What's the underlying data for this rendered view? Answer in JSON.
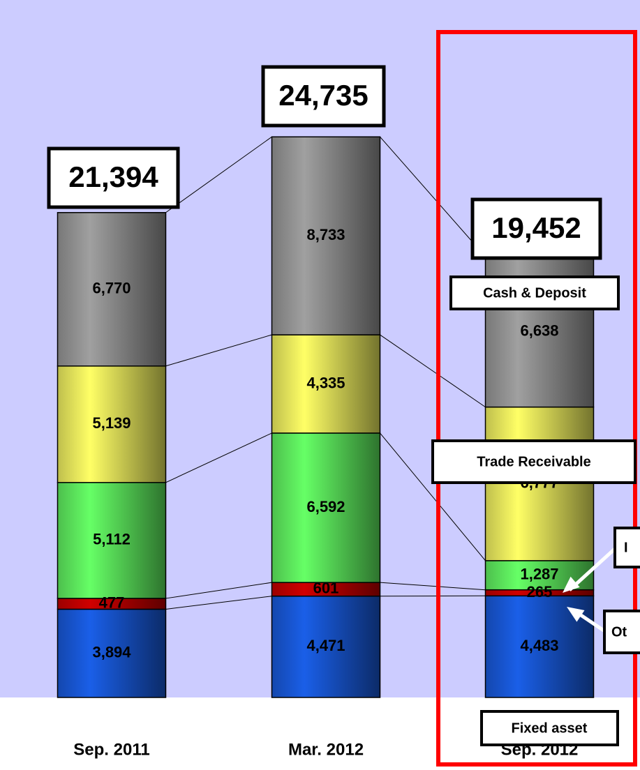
{
  "chart_data": {
    "type": "stacked_bar",
    "categories": [
      "Sep. 2011",
      "Mar. 2012",
      "Sep. 2012"
    ],
    "series": [
      {
        "name": "Fixed asset",
        "color": "#1a5fe8",
        "values": [
          3894,
          4471,
          4483
        ],
        "value_labels": [
          "3,894",
          "4,471",
          "4,483"
        ]
      },
      {
        "name": "Ot",
        "color": "#d00000",
        "values": [
          477,
          601,
          265
        ],
        "value_labels": [
          "477",
          "601",
          "265"
        ]
      },
      {
        "name": "I",
        "color": "#66ff66",
        "values": [
          5112,
          6592,
          1287
        ],
        "value_labels": [
          "5,112",
          "6,592",
          "1,287"
        ]
      },
      {
        "name": "Trade Receivable",
        "color": "#ffff66",
        "values": [
          5139,
          4335,
          6777
        ],
        "value_labels": [
          "5,139",
          "4,335",
          "6,777"
        ]
      },
      {
        "name": "Cash & Deposit",
        "color": "#a0a0a0",
        "values": [
          6770,
          8733,
          6638
        ],
        "value_labels": [
          "6,770",
          "8,733",
          "6,638"
        ]
      }
    ],
    "totals": [
      21394,
      24735,
      19452
    ],
    "total_labels": [
      "21,394",
      "24,735",
      "19,452"
    ]
  }
}
